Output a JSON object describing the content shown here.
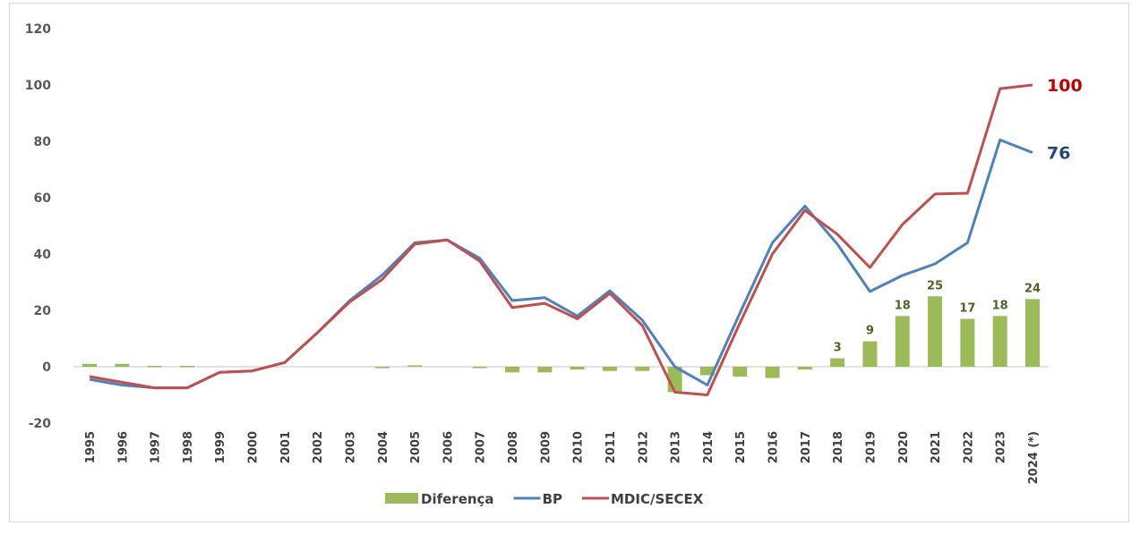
{
  "chart_data": {
    "type": "bar+line",
    "title": "",
    "xlabel": "",
    "ylabel": "",
    "ylim": [
      -20,
      120
    ],
    "yticks": [
      -20,
      0,
      20,
      40,
      60,
      80,
      100,
      120
    ],
    "grid": false,
    "legend_position": "bottom-center",
    "categories": [
      "1995",
      "1996",
      "1997",
      "1998",
      "1999",
      "2000",
      "2001",
      "2002",
      "2003",
      "2004",
      "2005",
      "2006",
      "2007",
      "2008",
      "2009",
      "2010",
      "2011",
      "2012",
      "2013",
      "2014",
      "2015",
      "2016",
      "2017",
      "2018",
      "2019",
      "2020",
      "2021",
      "2022",
      "2023",
      "2024 (*)"
    ],
    "series": [
      {
        "name": "Diferença",
        "type": "bar",
        "color": "#9bbb59",
        "values": [
          1,
          1,
          0.3,
          0.3,
          0,
          0,
          0,
          0,
          0,
          -0.5,
          0.5,
          0,
          -0.5,
          -2,
          -2,
          -1,
          -1.5,
          -1.5,
          -9,
          -3,
          -3.5,
          -4,
          -1,
          3,
          9,
          18,
          25,
          17,
          18,
          24
        ],
        "data_labels": {
          "2018": "3",
          "2019": "9",
          "2020": "18",
          "2021": "25",
          "2022": "17",
          "2023": "18",
          "2024 (*)": "24"
        }
      },
      {
        "name": "BP",
        "type": "line",
        "color": "#4f81bd",
        "values": [
          -4.5,
          -6.5,
          -7.5,
          -7.5,
          -2,
          -1.5,
          1.5,
          12,
          23.5,
          32.5,
          44,
          45,
          38.5,
          23.5,
          24.5,
          18,
          27,
          16.5,
          0,
          -6.5,
          19,
          44,
          57,
          43.5,
          26.7,
          32.4,
          36.5,
          44,
          80.5,
          76
        ],
        "end_label": "76",
        "end_label_color": "#1f497d"
      },
      {
        "name": "MDIC/SECEX",
        "type": "line",
        "color": "#c0504d",
        "values": [
          -3.5,
          -5.5,
          -7.5,
          -7.5,
          -2,
          -1.5,
          1.5,
          12,
          23,
          31,
          43.5,
          45,
          37.5,
          21,
          22.5,
          17,
          26,
          14.6,
          -9,
          -10,
          15.5,
          40,
          55.5,
          47,
          35.2,
          50.5,
          61.3,
          61.6,
          98.7,
          100
        ],
        "end_label": "100",
        "end_label_color": "#c00000"
      }
    ]
  }
}
